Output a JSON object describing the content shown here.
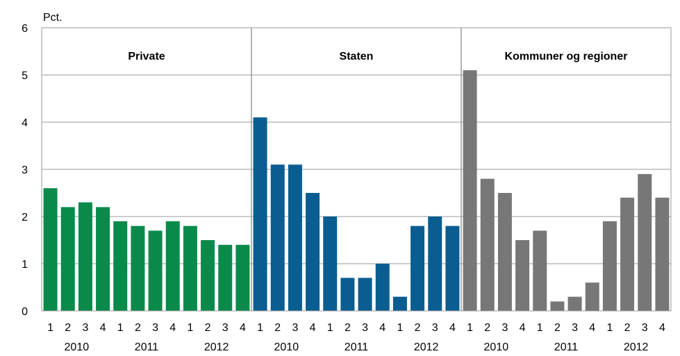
{
  "chart_data": {
    "type": "bar",
    "ylabel": "Pct.",
    "ylim": [
      0,
      6
    ],
    "yticks": [
      "0",
      "1",
      "2",
      "3",
      "4",
      "5",
      "6"
    ],
    "grid": true,
    "quarter_labels": [
      "1",
      "2",
      "3",
      "4",
      "1",
      "2",
      "3",
      "4",
      "1",
      "2",
      "3",
      "4"
    ],
    "panels": [
      {
        "name": "Private",
        "color": "#0a8a4a",
        "years": [
          "2010",
          "2011",
          "2012"
        ],
        "values": [
          2.6,
          2.2,
          2.3,
          2.2,
          1.9,
          1.8,
          1.7,
          1.9,
          1.8,
          1.5,
          1.4,
          1.4
        ]
      },
      {
        "name": "Staten",
        "color": "#0a5d91",
        "years": [
          "2010",
          "2011",
          "2012"
        ],
        "values": [
          4.1,
          3.1,
          3.1,
          2.5,
          2.0,
          0.7,
          0.7,
          1.0,
          0.3,
          1.8,
          2.0,
          1.8
        ]
      },
      {
        "name": "Kommuner og regioner",
        "color": "#777777",
        "years": [
          "2010",
          "2011",
          "2012"
        ],
        "values": [
          5.1,
          2.8,
          2.5,
          1.5,
          1.7,
          0.2,
          0.3,
          0.6,
          1.9,
          2.4,
          2.9,
          2.4
        ]
      }
    ]
  }
}
